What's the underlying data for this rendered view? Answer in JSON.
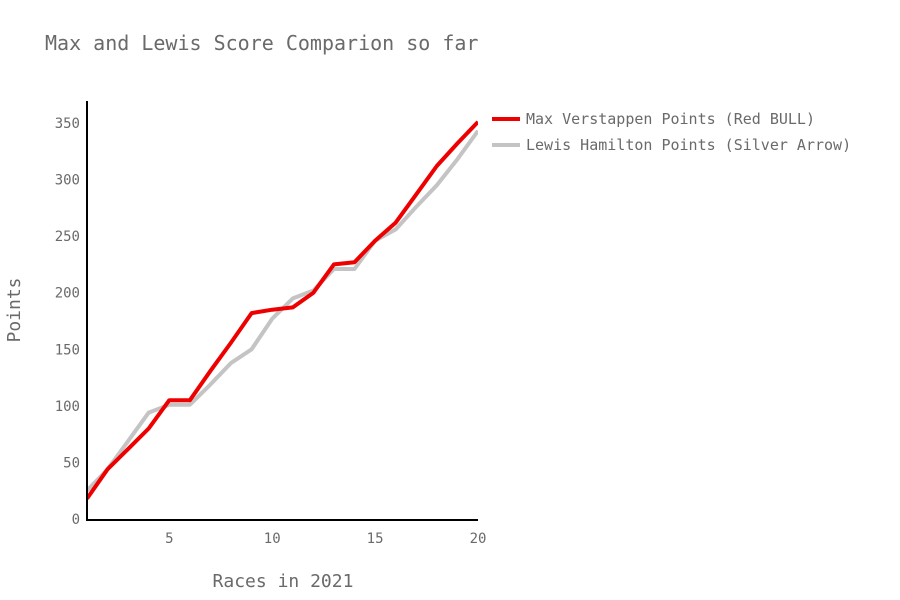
{
  "chart_data": {
    "type": "line",
    "title": "Max and Lewis Score Comparion so far",
    "xlabel": "Races in 2021",
    "ylabel": "Points",
    "xlim": [
      1,
      20
    ],
    "ylim": [
      0,
      370
    ],
    "x_ticks": [
      "5",
      "10",
      "15",
      "20"
    ],
    "x_tick_values": [
      5,
      10,
      15,
      20
    ],
    "y_ticks": [
      "0",
      "50",
      "100",
      "150",
      "200",
      "250",
      "300",
      "350"
    ],
    "y_tick_values": [
      0,
      50,
      100,
      150,
      200,
      250,
      300,
      350
    ],
    "legend_position": "top-right",
    "grid": false,
    "x": [
      1,
      2,
      3,
      4,
      5,
      6,
      7,
      8,
      9,
      10,
      11,
      12,
      13,
      14,
      15,
      16,
      17,
      18,
      19,
      20
    ],
    "series": [
      {
        "name": "Max Verstappen Points (Red BULL)",
        "color": "#ee0000",
        "values": [
          18,
          44,
          62,
          80,
          105,
          105,
          131,
          156,
          182,
          185,
          187,
          200,
          225,
          227,
          246,
          262,
          287,
          312,
          332,
          351
        ]
      },
      {
        "name": "Lewis Hamilton Points (Silver Arrow)",
        "color": "#c4c4c4",
        "values": [
          25,
          44,
          69,
          94,
          101,
          101,
          119,
          138,
          150,
          177,
          195,
          202,
          221,
          221,
          246,
          256,
          276,
          295,
          318,
          343
        ]
      }
    ]
  }
}
